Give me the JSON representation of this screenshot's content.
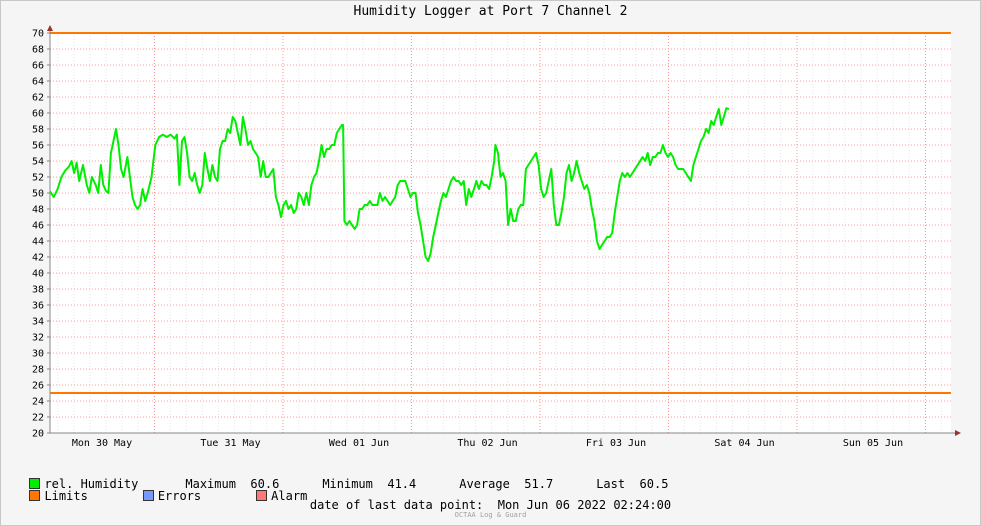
{
  "chart_data": {
    "type": "line",
    "title": "Humidity Logger at Port 7 Channel 2",
    "ylim": [
      20,
      70
    ],
    "yticks": [
      20,
      22,
      24,
      26,
      28,
      30,
      32,
      34,
      36,
      38,
      40,
      42,
      44,
      46,
      48,
      50,
      52,
      54,
      56,
      58,
      60,
      62,
      64,
      66,
      68,
      70
    ],
    "xticks": [
      "Mon 30 May",
      "Tue 31 May",
      "Wed 01 Jun",
      "Thu 02 Jun",
      "Fri 03 Jun",
      "Sat 04 Jun",
      "Sun 05 Jun"
    ],
    "x_range_days": [
      0,
      7.1
    ],
    "grid": true,
    "limits": {
      "upper": 70,
      "lower": 25
    },
    "series": [
      {
        "name": "rel. Humidity",
        "color": "#00ee00",
        "points": [
          [
            0.0,
            50.2
          ],
          [
            0.03,
            49.5
          ],
          [
            0.06,
            50.5
          ],
          [
            0.09,
            52.0
          ],
          [
            0.12,
            52.8
          ],
          [
            0.15,
            53.3
          ],
          [
            0.17,
            54.0
          ],
          [
            0.19,
            52.5
          ],
          [
            0.21,
            53.8
          ],
          [
            0.23,
            51.5
          ],
          [
            0.26,
            53.5
          ],
          [
            0.29,
            51.0
          ],
          [
            0.31,
            50.0
          ],
          [
            0.33,
            52.0
          ],
          [
            0.36,
            51.0
          ],
          [
            0.38,
            50.0
          ],
          [
            0.4,
            53.5
          ],
          [
            0.42,
            51.0
          ],
          [
            0.44,
            50.3
          ],
          [
            0.46,
            50.0
          ],
          [
            0.48,
            55.0
          ],
          [
            0.5,
            56.5
          ],
          [
            0.52,
            58.0
          ],
          [
            0.54,
            56.0
          ],
          [
            0.56,
            53.0
          ],
          [
            0.58,
            52.0
          ],
          [
            0.61,
            54.5
          ],
          [
            0.63,
            52.0
          ],
          [
            0.65,
            49.5
          ],
          [
            0.67,
            48.5
          ],
          [
            0.69,
            48.0
          ],
          [
            0.71,
            48.5
          ],
          [
            0.73,
            50.5
          ],
          [
            0.75,
            49.0
          ],
          [
            0.77,
            50.0
          ],
          [
            0.8,
            52.0
          ],
          [
            0.83,
            56.0
          ],
          [
            0.86,
            57.0
          ],
          [
            0.89,
            57.3
          ],
          [
            0.92,
            57.0
          ],
          [
            0.95,
            57.3
          ],
          [
            0.98,
            56.8
          ],
          [
            1.0,
            57.3
          ],
          [
            1.02,
            51.0
          ],
          [
            1.04,
            56.5
          ],
          [
            1.06,
            57.0
          ],
          [
            1.08,
            55.0
          ],
          [
            1.1,
            52.0
          ],
          [
            1.12,
            51.5
          ],
          [
            1.14,
            52.5
          ],
          [
            1.16,
            51.0
          ],
          [
            1.18,
            50.0
          ],
          [
            1.2,
            51.0
          ],
          [
            1.22,
            55.0
          ],
          [
            1.24,
            53.0
          ],
          [
            1.26,
            51.5
          ],
          [
            1.28,
            53.5
          ],
          [
            1.3,
            52.0
          ],
          [
            1.32,
            51.5
          ],
          [
            1.34,
            55.5
          ],
          [
            1.36,
            56.5
          ],
          [
            1.38,
            56.5
          ],
          [
            1.4,
            58.0
          ],
          [
            1.42,
            57.5
          ],
          [
            1.44,
            59.5
          ],
          [
            1.46,
            59.0
          ],
          [
            1.48,
            57.5
          ],
          [
            1.5,
            56.0
          ],
          [
            1.52,
            59.5
          ],
          [
            1.54,
            58.0
          ],
          [
            1.56,
            56.0
          ],
          [
            1.58,
            56.5
          ],
          [
            1.6,
            55.5
          ],
          [
            1.62,
            55.0
          ],
          [
            1.64,
            54.5
          ],
          [
            1.66,
            52.0
          ],
          [
            1.68,
            54.0
          ],
          [
            1.7,
            52.0
          ],
          [
            1.72,
            52.0
          ],
          [
            1.74,
            52.5
          ],
          [
            1.76,
            53.0
          ],
          [
            1.78,
            49.5
          ],
          [
            1.8,
            48.5
          ],
          [
            1.82,
            47.0
          ],
          [
            1.84,
            48.5
          ],
          [
            1.86,
            49.0
          ],
          [
            1.88,
            48.0
          ],
          [
            1.9,
            48.5
          ],
          [
            1.92,
            47.5
          ],
          [
            1.94,
            48.0
          ],
          [
            1.96,
            50.0
          ],
          [
            1.98,
            49.5
          ],
          [
            2.0,
            48.5
          ],
          [
            2.02,
            50.0
          ],
          [
            2.04,
            48.5
          ],
          [
            2.06,
            51.0
          ],
          [
            2.08,
            52.0
          ],
          [
            2.1,
            52.5
          ],
          [
            2.12,
            54.0
          ],
          [
            2.14,
            56.0
          ],
          [
            2.16,
            54.5
          ],
          [
            2.18,
            55.5
          ],
          [
            2.2,
            55.5
          ],
          [
            2.22,
            56.0
          ],
          [
            2.24,
            56.0
          ],
          [
            2.26,
            57.5
          ],
          [
            2.28,
            58.0
          ],
          [
            2.3,
            58.5
          ],
          [
            2.31,
            58.5
          ],
          [
            2.32,
            46.5
          ],
          [
            2.34,
            46.0
          ],
          [
            2.36,
            46.5
          ],
          [
            2.38,
            46.0
          ],
          [
            2.4,
            45.5
          ],
          [
            2.42,
            46.0
          ],
          [
            2.44,
            48.0
          ],
          [
            2.46,
            48.0
          ],
          [
            2.48,
            48.5
          ],
          [
            2.5,
            48.5
          ],
          [
            2.52,
            49.0
          ],
          [
            2.54,
            48.5
          ],
          [
            2.56,
            48.5
          ],
          [
            2.58,
            48.5
          ],
          [
            2.6,
            50.0
          ],
          [
            2.62,
            49.0
          ],
          [
            2.64,
            49.5
          ],
          [
            2.66,
            49.0
          ],
          [
            2.68,
            48.5
          ],
          [
            2.7,
            49.0
          ],
          [
            2.72,
            49.5
          ],
          [
            2.74,
            51.0
          ],
          [
            2.76,
            51.5
          ],
          [
            2.78,
            51.5
          ],
          [
            2.8,
            51.5
          ],
          [
            2.82,
            50.5
          ],
          [
            2.84,
            49.5
          ],
          [
            2.86,
            50.0
          ],
          [
            2.88,
            50.0
          ],
          [
            2.9,
            47.5
          ],
          [
            2.92,
            46.0
          ],
          [
            2.94,
            44.0
          ],
          [
            2.96,
            42.0
          ],
          [
            2.98,
            41.5
          ],
          [
            3.0,
            42.5
          ],
          [
            3.02,
            44.5
          ],
          [
            3.04,
            46.0
          ],
          [
            3.06,
            47.5
          ],
          [
            3.08,
            49.0
          ],
          [
            3.1,
            50.0
          ],
          [
            3.12,
            49.5
          ],
          [
            3.14,
            50.5
          ],
          [
            3.16,
            51.5
          ],
          [
            3.18,
            52.0
          ],
          [
            3.2,
            51.5
          ],
          [
            3.22,
            51.5
          ],
          [
            3.24,
            51.0
          ],
          [
            3.26,
            51.5
          ],
          [
            3.28,
            48.5
          ],
          [
            3.3,
            50.5
          ],
          [
            3.32,
            49.5
          ],
          [
            3.34,
            50.5
          ],
          [
            3.36,
            51.5
          ],
          [
            3.38,
            50.5
          ],
          [
            3.4,
            51.5
          ],
          [
            3.42,
            51.0
          ],
          [
            3.44,
            51.0
          ],
          [
            3.46,
            50.5
          ],
          [
            3.48,
            52.0
          ],
          [
            3.5,
            54.0
          ],
          [
            3.51,
            56.0
          ],
          [
            3.53,
            55.0
          ],
          [
            3.55,
            52.0
          ],
          [
            3.57,
            52.5
          ],
          [
            3.59,
            51.5
          ],
          [
            3.61,
            46.0
          ],
          [
            3.63,
            48.0
          ],
          [
            3.65,
            46.5
          ],
          [
            3.67,
            46.5
          ],
          [
            3.69,
            48.0
          ],
          [
            3.71,
            48.5
          ],
          [
            3.73,
            48.5
          ],
          [
            3.75,
            53.0
          ],
          [
            3.77,
            53.5
          ],
          [
            3.79,
            54.0
          ],
          [
            3.81,
            54.5
          ],
          [
            3.83,
            55.0
          ],
          [
            3.85,
            53.5
          ],
          [
            3.87,
            50.5
          ],
          [
            3.89,
            49.5
          ],
          [
            3.91,
            50.0
          ],
          [
            3.93,
            51.5
          ],
          [
            3.95,
            53.0
          ],
          [
            3.97,
            48.5
          ],
          [
            3.99,
            46.0
          ],
          [
            4.01,
            46.0
          ],
          [
            4.03,
            47.5
          ],
          [
            4.05,
            49.5
          ],
          [
            4.07,
            52.5
          ],
          [
            4.09,
            53.5
          ],
          [
            4.11,
            51.5
          ],
          [
            4.13,
            52.5
          ],
          [
            4.15,
            54.0
          ],
          [
            4.17,
            52.5
          ],
          [
            4.19,
            51.5
          ],
          [
            4.21,
            50.5
          ],
          [
            4.23,
            51.0
          ],
          [
            4.25,
            50.0
          ],
          [
            4.27,
            48.0
          ],
          [
            4.29,
            46.5
          ],
          [
            4.31,
            44.0
          ],
          [
            4.33,
            43.0
          ],
          [
            4.35,
            43.5
          ],
          [
            4.37,
            44.0
          ],
          [
            4.39,
            44.5
          ],
          [
            4.41,
            44.5
          ],
          [
            4.43,
            45.0
          ],
          [
            4.45,
            47.5
          ],
          [
            4.47,
            49.5
          ],
          [
            4.49,
            51.5
          ],
          [
            4.51,
            52.5
          ],
          [
            4.53,
            52.0
          ],
          [
            4.55,
            52.5
          ],
          [
            4.57,
            52.0
          ],
          [
            4.59,
            52.5
          ],
          [
            4.61,
            53.0
          ],
          [
            4.63,
            53.5
          ],
          [
            4.65,
            54.0
          ],
          [
            4.67,
            54.5
          ],
          [
            4.69,
            54.0
          ],
          [
            4.71,
            55.0
          ],
          [
            4.73,
            53.5
          ],
          [
            4.75,
            54.5
          ],
          [
            4.77,
            54.5
          ],
          [
            4.79,
            55.0
          ],
          [
            4.81,
            55.0
          ],
          [
            4.83,
            56.0
          ],
          [
            4.85,
            55.0
          ],
          [
            4.87,
            54.5
          ],
          [
            4.89,
            55.0
          ],
          [
            4.91,
            54.5
          ],
          [
            4.93,
            53.5
          ],
          [
            4.95,
            53.0
          ],
          [
            4.97,
            53.0
          ],
          [
            4.99,
            53.0
          ],
          [
            5.01,
            52.5
          ],
          [
            5.03,
            52.0
          ],
          [
            5.05,
            51.5
          ],
          [
            5.07,
            53.5
          ],
          [
            5.09,
            54.5
          ],
          [
            5.11,
            55.5
          ],
          [
            5.13,
            56.5
          ],
          [
            5.15,
            57.0
          ],
          [
            5.17,
            58.0
          ],
          [
            5.19,
            57.5
          ],
          [
            5.21,
            59.0
          ],
          [
            5.23,
            58.5
          ],
          [
            5.25,
            59.5
          ],
          [
            5.27,
            60.5
          ],
          [
            5.29,
            58.5
          ],
          [
            5.31,
            59.5
          ],
          [
            5.33,
            60.6
          ],
          [
            5.35,
            60.5
          ]
        ]
      }
    ],
    "legend": [
      {
        "name": "rel. Humidity",
        "color": "#00ee00"
      },
      {
        "name": "Limits",
        "color": "#ff7700"
      },
      {
        "name": "Errors",
        "color": "#7799ff"
      },
      {
        "name": "Alarm",
        "color": "#ff7777"
      }
    ],
    "stats": {
      "maximum_label": "Maximum",
      "maximum": "60.6",
      "minimum_label": "Minimum",
      "minimum": "41.4",
      "average_label": "Average",
      "average": "51.7",
      "last_label": "Last",
      "last": "60.5"
    },
    "footer": {
      "label": "date of last data point:",
      "value": "Mon Jun 06 2022 02:24:00",
      "credit": "OCTAA Log & Guard"
    }
  }
}
